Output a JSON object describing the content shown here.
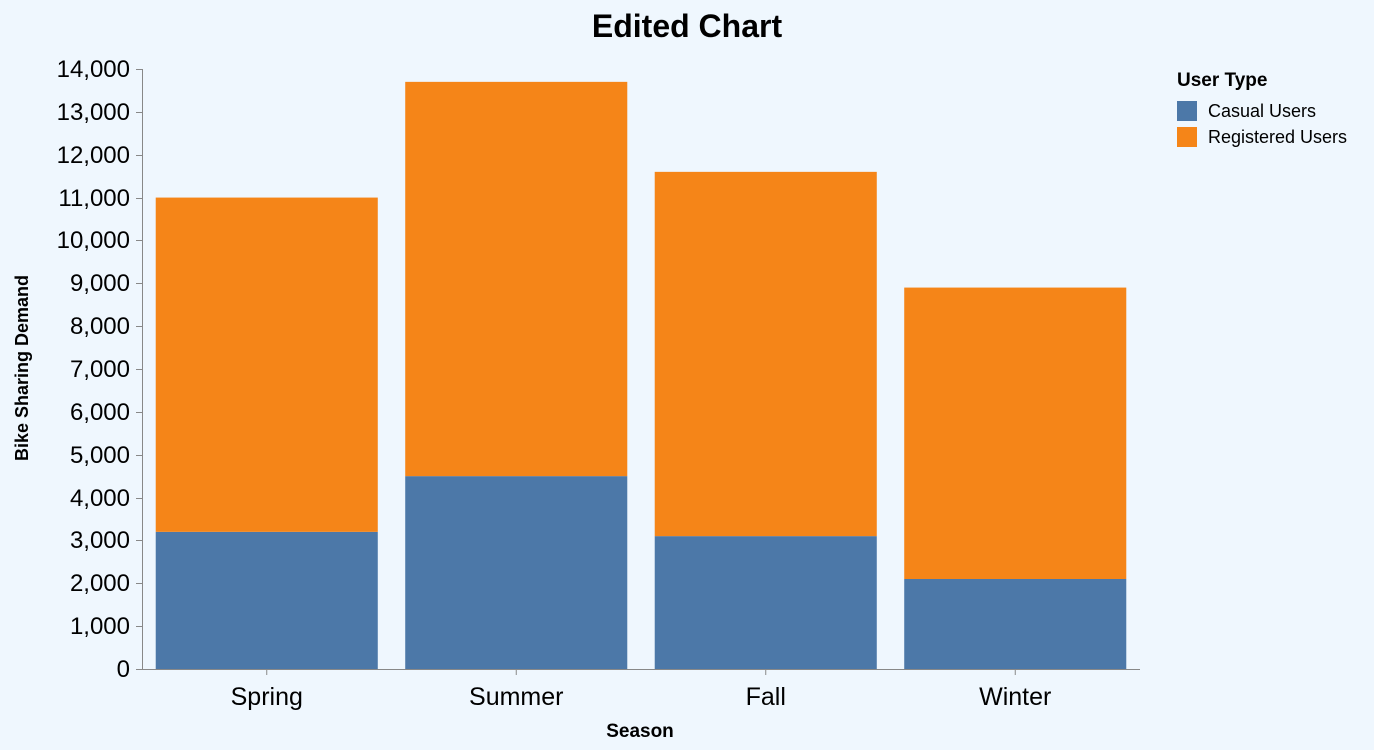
{
  "chart_data": {
    "type": "bar",
    "stacked": true,
    "title": "Edited Chart",
    "xlabel": "Season",
    "ylabel": "Bike Sharing Demand",
    "categories": [
      "Spring",
      "Summer",
      "Fall",
      "Winter"
    ],
    "ylim": [
      0,
      14000
    ],
    "yticks": [
      0,
      1000,
      2000,
      3000,
      4000,
      5000,
      6000,
      7000,
      8000,
      9000,
      10000,
      11000,
      12000,
      13000,
      14000
    ],
    "grid": false,
    "legend": {
      "title": "User Type",
      "placement": "top-right"
    },
    "series": [
      {
        "name": "Casual Users",
        "color": "#4c78a8",
        "values": [
          3200,
          4500,
          3100,
          2100
        ]
      },
      {
        "name": "Registered Users",
        "color": "#f58518",
        "values": [
          7800,
          9200,
          8500,
          6800
        ]
      }
    ]
  }
}
